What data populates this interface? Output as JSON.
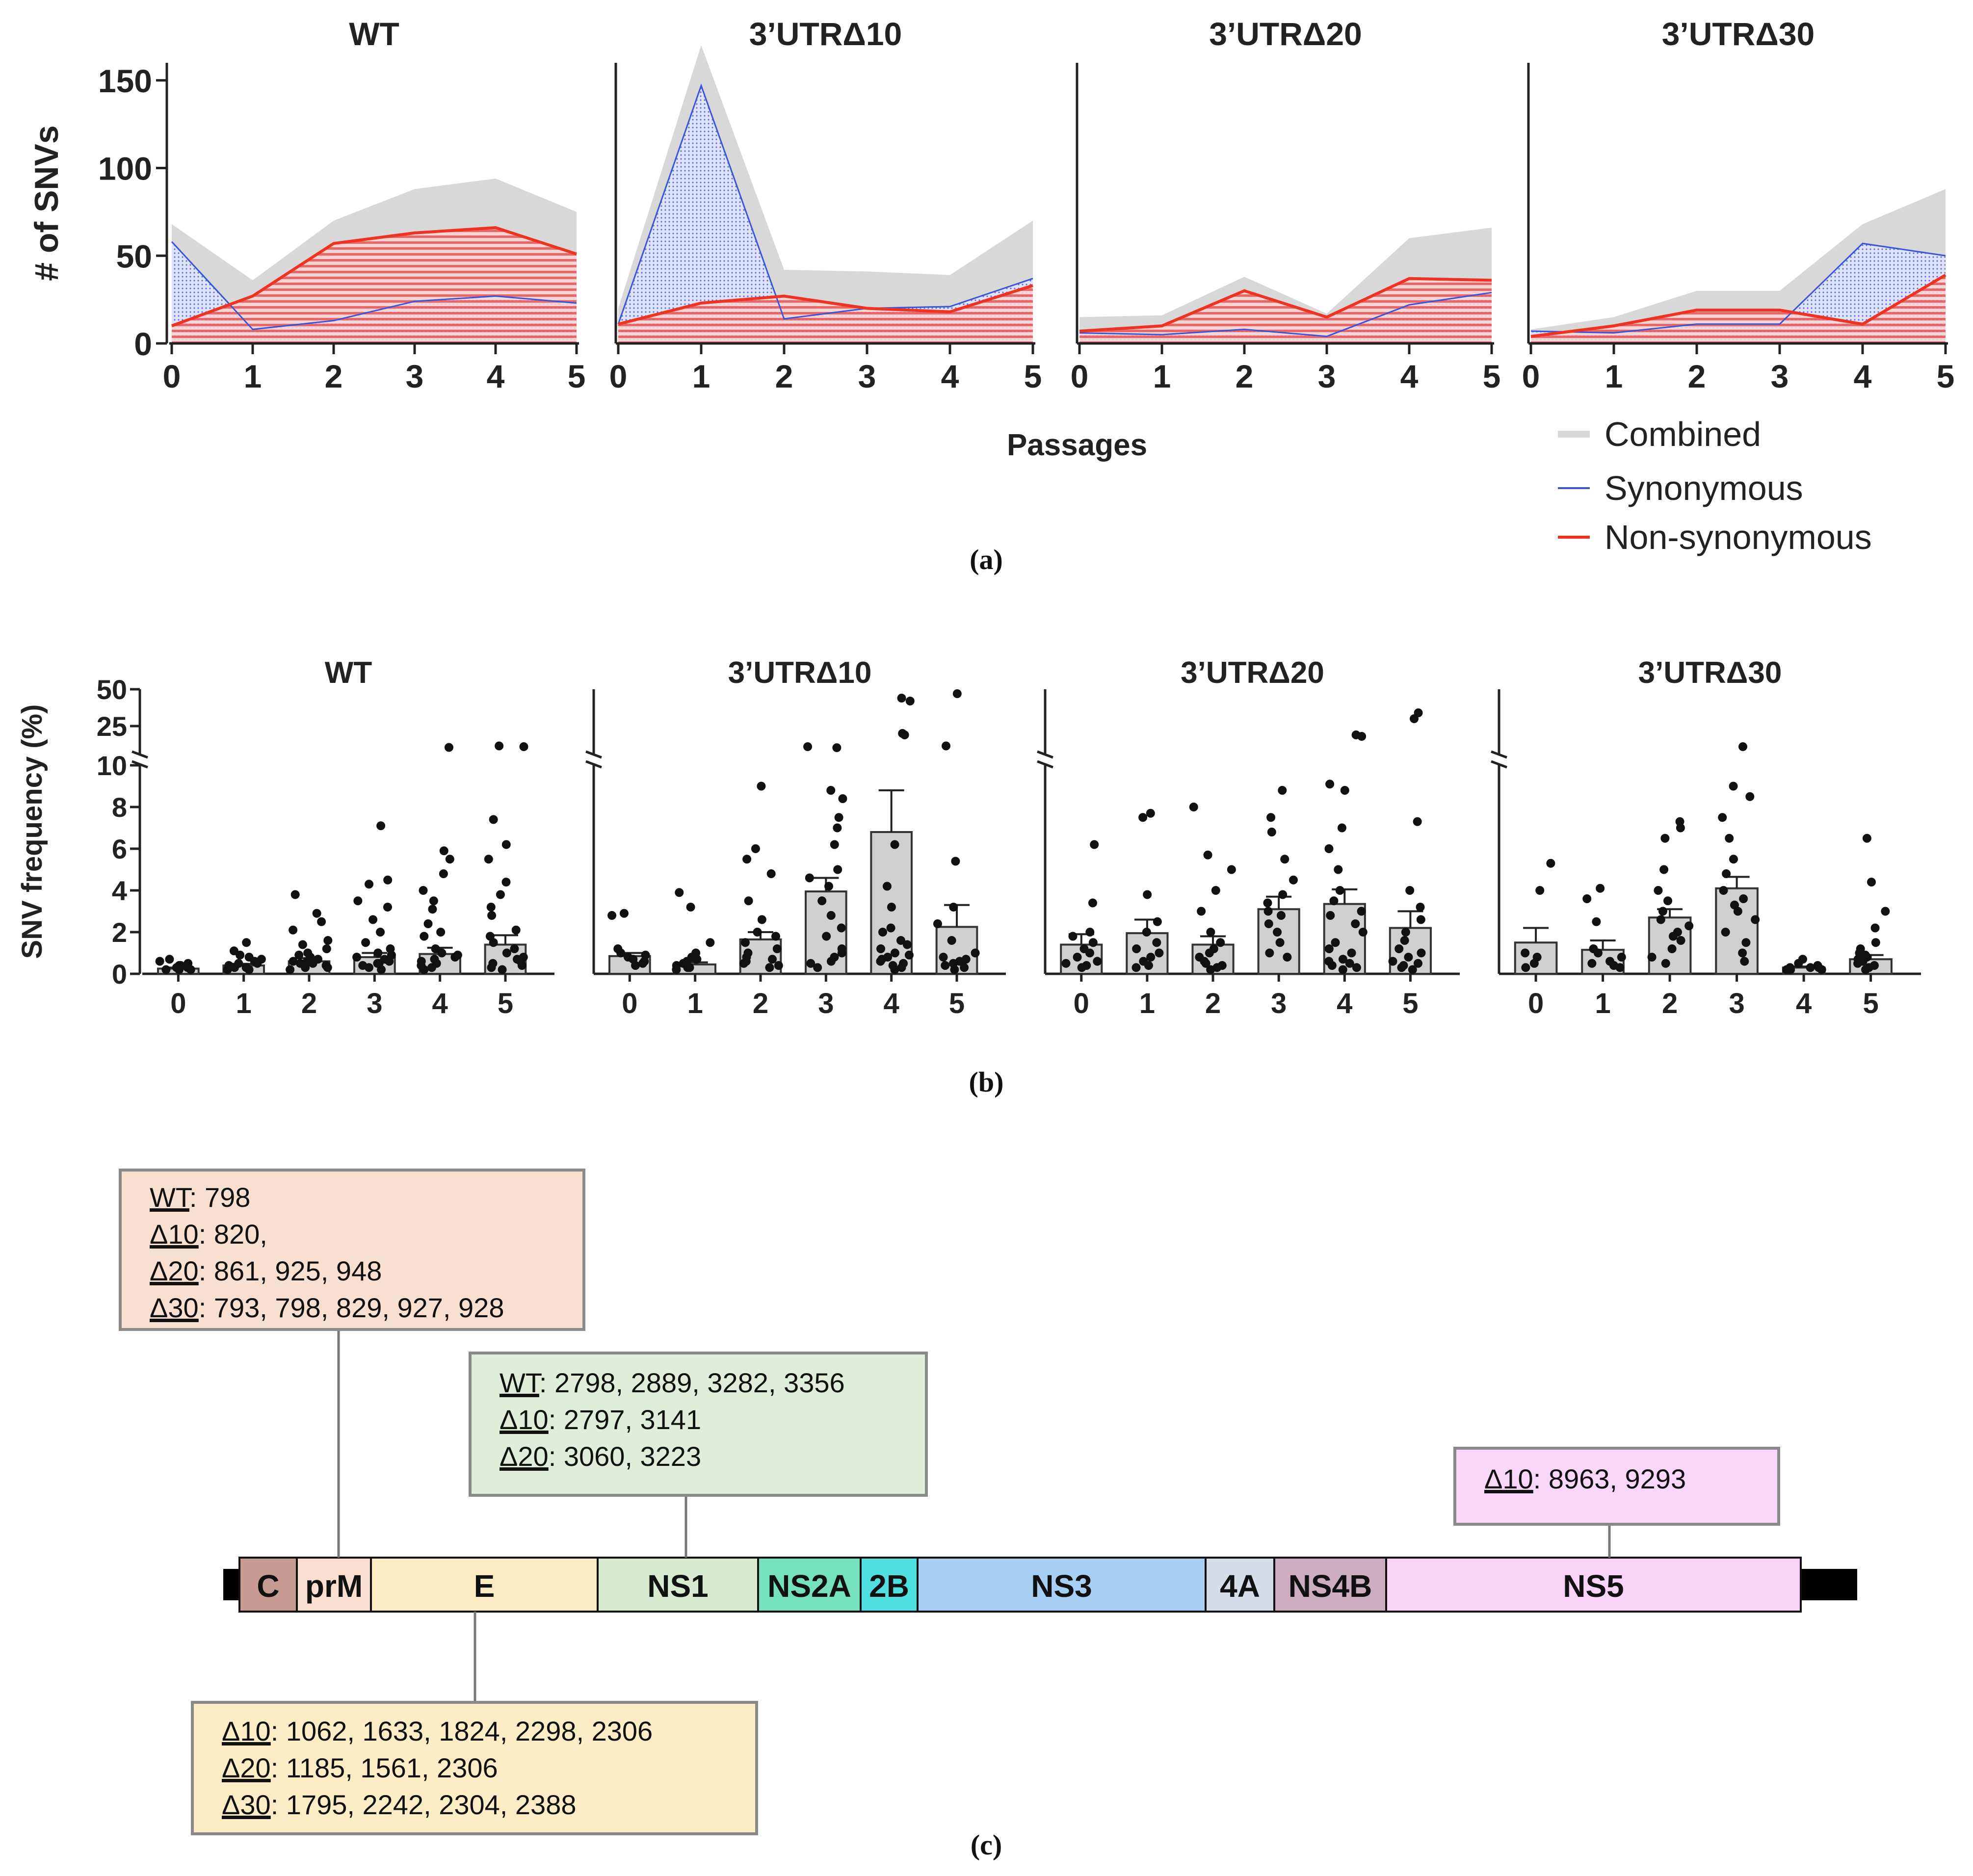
{
  "panel_labels": {
    "a": "(a)",
    "b": "(b)",
    "c": "(c)"
  },
  "chart_data": [
    {
      "type": "area",
      "panel": "a",
      "ylabel": "# of SNVs",
      "xlabel": "Passages",
      "ylim": [
        0,
        160
      ],
      "yticks": [
        0,
        50,
        100,
        150
      ],
      "x": [
        0,
        1,
        2,
        3,
        4,
        5
      ],
      "legend": {
        "placement": "bottom-right",
        "combined": "Combined",
        "synonymous": "Synonymous",
        "nonsynonymous": "Non-synonymous"
      },
      "colors": {
        "combined": "#d8d8d8",
        "synonymous": "#3a55d8",
        "nonsynonymous": "#ee3322"
      },
      "subplots": [
        {
          "title": "WT",
          "combined": [
            68,
            36,
            70,
            88,
            94,
            75
          ],
          "synonymous": [
            58,
            8,
            13,
            24,
            27,
            23
          ],
          "nonsynonymous": [
            10,
            27,
            57,
            63,
            66,
            51
          ]
        },
        {
          "title": "3’UTRΔ10",
          "combined": [
            20,
            170,
            42,
            41,
            39,
            70
          ],
          "synonymous": [
            11,
            147,
            14,
            20,
            21,
            37
          ],
          "nonsynonymous": [
            11,
            23,
            27,
            20,
            18,
            33
          ]
        },
        {
          "title": "3’UTRΔ20",
          "combined": [
            15,
            16,
            38,
            17,
            60,
            66
          ],
          "synonymous": [
            6,
            5,
            8,
            4,
            22,
            29
          ],
          "nonsynonymous": [
            7,
            10,
            30,
            15,
            37,
            36
          ]
        },
        {
          "title": "3’UTRΔ30",
          "combined": [
            8,
            15,
            30,
            30,
            68,
            88
          ],
          "synonymous": [
            7,
            6,
            11,
            11,
            57,
            50
          ],
          "nonsynonymous": [
            4,
            10,
            19,
            19,
            11,
            39
          ]
        }
      ]
    },
    {
      "type": "bar",
      "panel": "b",
      "ylabel": "SNV frequency (%)",
      "ylim": [
        0,
        50
      ],
      "axis_break": 10,
      "yticks_lower": [
        0,
        2,
        4,
        6,
        8,
        10
      ],
      "yticks_upper": [
        25,
        50
      ],
      "categories": [
        "0",
        "1",
        "2",
        "3",
        "4",
        "5"
      ],
      "bar_color": "#d0d0d0",
      "subplots": [
        {
          "title": "WT",
          "means": [
            0.25,
            0.4,
            0.6,
            0.8,
            0.95,
            1.4
          ],
          "errors": [
            0.05,
            0.08,
            0.15,
            0.2,
            0.3,
            0.45
          ],
          "points": [
            [
              0.2,
              0.3,
              0.4,
              0.3,
              0.7,
              0.2,
              0.5,
              0.3,
              0.4,
              0.2,
              0.6
            ],
            [
              0.3,
              0.5,
              0.9,
              1.5,
              0.4,
              0.2,
              0.7,
              1.1,
              0.3,
              0.6,
              0.5,
              0.8,
              0.2
            ],
            [
              0.4,
              1.2,
              3.8,
              2.9,
              2.1,
              1.6,
              0.8,
              0.3,
              0.5,
              0.6,
              1.0,
              0.2,
              0.7,
              1.4,
              0.9,
              2.5,
              0.3,
              0.5,
              0.6
            ],
            [
              0.5,
              7.1,
              4.5,
              4.3,
              3.2,
              2.6,
              1.5,
              1.0,
              0.8,
              0.3,
              0.6,
              0.4,
              1.2,
              2.0,
              0.7,
              3.5,
              0.2,
              0.9,
              0.5
            ],
            [
              10.5,
              5.9,
              5.5,
              4.8,
              3.1,
              2.4,
              1.8,
              1.2,
              0.8,
              0.5,
              0.3,
              0.4,
              0.6,
              1.0,
              2.0,
              0.7,
              3.5,
              4.0,
              0.2,
              0.9
            ],
            [
              11.0,
              11.5,
              7.4,
              6.2,
              5.5,
              4.4,
              3.8,
              2.8,
              2.1,
              1.5,
              1.0,
              0.6,
              0.4,
              0.3,
              0.8,
              1.2,
              3.2,
              0.5,
              0.2,
              0.7,
              1.8
            ]
          ]
        },
        {
          "title": "3’UTRΔ10",
          "means": [
            0.85,
            0.45,
            1.65,
            3.95,
            6.8,
            2.25
          ],
          "errors": [
            0.15,
            0.1,
            0.35,
            0.65,
            2.0,
            1.05
          ],
          "points": [
            [
              0.5,
              0.8,
              1.0,
              0.7,
              2.8,
              2.9,
              0.6,
              1.2,
              0.9,
              0.4
            ],
            [
              0.3,
              0.5,
              3.9,
              3.2,
              1.5,
              0.8,
              0.6,
              0.2,
              0.4,
              0.7,
              1.0,
              0.3
            ],
            [
              0.5,
              9.0,
              6.0,
              5.5,
              4.8,
              3.5,
              2.6,
              1.8,
              1.2,
              0.8,
              0.4,
              0.3,
              0.6,
              1.0,
              2.0,
              0.7,
              1.5
            ],
            [
              11.0,
              10.3,
              8.8,
              8.4,
              7.5,
              7.0,
              6.2,
              5.0,
              4.2,
              3.5,
              2.8,
              1.8,
              1.2,
              0.8,
              0.5,
              0.3,
              2.2,
              0.6,
              1.0,
              4.6
            ],
            [
              44,
              42,
              20,
              19,
              6.2,
              4.2,
              3.2,
              2.2,
              1.6,
              1.2,
              1.0,
              0.8,
              0.6,
              0.5,
              0.4,
              0.3,
              0.7,
              2.0,
              0.2,
              0.9,
              1.4
            ],
            [
              47,
              11.5,
              5.4,
              3.2,
              2.4,
              1.6,
              1.0,
              0.6,
              0.4,
              0.2,
              0.3,
              0.5,
              0.8,
              0.7
            ]
          ]
        },
        {
          "title": "3’UTRΔ20",
          "means": [
            1.4,
            1.95,
            1.4,
            3.1,
            3.35,
            2.2
          ],
          "errors": [
            0.5,
            0.65,
            0.4,
            0.6,
            0.7,
            0.8
          ],
          "points": [
            [
              6.2,
              3.4,
              2.0,
              1.5,
              1.2,
              0.8,
              0.4,
              0.3,
              0.6,
              1.0,
              0.5,
              1.8
            ],
            [
              7.7,
              7.5,
              3.8,
              2.0,
              1.5,
              1.2,
              0.8,
              0.6,
              0.3,
              1.0,
              0.4,
              2.5
            ],
            [
              8.0,
              5.7,
              5.0,
              4.0,
              3.0,
              2.0,
              1.5,
              1.0,
              0.8,
              0.4,
              0.3,
              0.6,
              1.2,
              0.5,
              0.2
            ],
            [
              8.8,
              7.5,
              6.8,
              5.5,
              4.5,
              3.8,
              3.0,
              2.4,
              2.0,
              1.5,
              1.0,
              0.8,
              3.4,
              2.8
            ],
            [
              19,
              18,
              9.1,
              8.8,
              7.0,
              6.0,
              5.0,
              4.0,
              3.5,
              3.0,
              2.4,
              2.0,
              1.5,
              1.0,
              0.7,
              0.4,
              0.3,
              0.5,
              1.2,
              2.8,
              0.2,
              0.6
            ],
            [
              34,
              30,
              7.3,
              4.0,
              3.2,
              2.6,
              2.0,
              1.6,
              1.2,
              0.8,
              0.4,
              0.3,
              0.5,
              1.0,
              0.2,
              0.6
            ]
          ]
        },
        {
          "title": "3’UTRΔ30",
          "means": [
            1.5,
            1.15,
            2.7,
            4.1,
            0.3,
            0.7
          ],
          "errors": [
            0.7,
            0.45,
            0.4,
            0.55,
            0.05,
            0.2
          ],
          "points": [
            [
              5.3,
              4.0,
              1.0,
              0.3,
              0.5,
              0.8
            ],
            [
              4.1,
              3.6,
              2.5,
              1.0,
              0.5,
              0.3,
              0.4,
              0.8,
              1.2,
              0.6
            ],
            [
              7.3,
              7.0,
              6.5,
              5.0,
              4.0,
              3.5,
              3.0,
              2.6,
              2.0,
              1.6,
              1.2,
              0.8,
              0.5,
              2.3,
              1.8
            ],
            [
              11.0,
              9.0,
              8.5,
              7.5,
              6.5,
              5.5,
              4.8,
              4.0,
              3.6,
              3.0,
              2.6,
              2.0,
              1.5,
              1.0,
              0.6,
              3.3
            ],
            [
              0.3,
              0.2,
              0.4,
              0.3,
              0.7,
              0.2,
              0.5,
              0.3,
              0.2
            ],
            [
              6.5,
              4.4,
              3.0,
              2.2,
              1.5,
              1.0,
              0.7,
              0.4,
              0.3,
              0.5,
              0.8,
              0.6,
              0.2,
              1.2,
              0.9
            ]
          ]
        }
      ]
    }
  ],
  "genome": {
    "genes": [
      {
        "label": "C",
        "color": "#c79a93"
      },
      {
        "label": "prM",
        "color": "#f8dfd0"
      },
      {
        "label": "E",
        "color": "#fdebc4"
      },
      {
        "label": "NS1",
        "color": "#d9ead2"
      },
      {
        "label": "NS2A",
        "color": "#75e2bd"
      },
      {
        "label": "2B",
        "color": "#4fdfe0"
      },
      {
        "label": "NS3",
        "color": "#a7cff4"
      },
      {
        "label": "4A",
        "color": "#d5dde9"
      },
      {
        "label": "NS4B",
        "color": "#cbaec0"
      },
      {
        "label": "NS5",
        "color": "#f9d3f8"
      }
    ],
    "mutation_boxes": [
      {
        "gene": "prM",
        "color": "#f8e0d1",
        "lines": [
          [
            "WT",
            ": 798"
          ],
          [
            "Δ10",
            ": 820,"
          ],
          [
            "Δ20",
            ": 861, 925, 948"
          ],
          [
            "Δ30",
            ": 793, 798, 829, 927, 928"
          ]
        ]
      },
      {
        "gene": "NS1",
        "color": "#e0edda",
        "lines": [
          [
            "WT",
            ": 2798, 2889, 3282, 3356"
          ],
          [
            "Δ10",
            ": 2797, 3141"
          ],
          [
            "Δ20",
            ": 3060, 3223"
          ]
        ]
      },
      {
        "gene": "NS5",
        "color": "#f9d7f9",
        "lines": [
          [
            "Δ10",
            ": 8963, 9293"
          ]
        ]
      },
      {
        "gene": "E",
        "color": "#fdedc7",
        "lines": [
          [
            "Δ10",
            ": 1062, 1633, 1824, 2298, 2306"
          ],
          [
            "Δ20",
            ": 1185, 1561, 2306"
          ],
          [
            "Δ30",
            ": 1795, 2242, 2304, 2388"
          ]
        ]
      }
    ]
  }
}
